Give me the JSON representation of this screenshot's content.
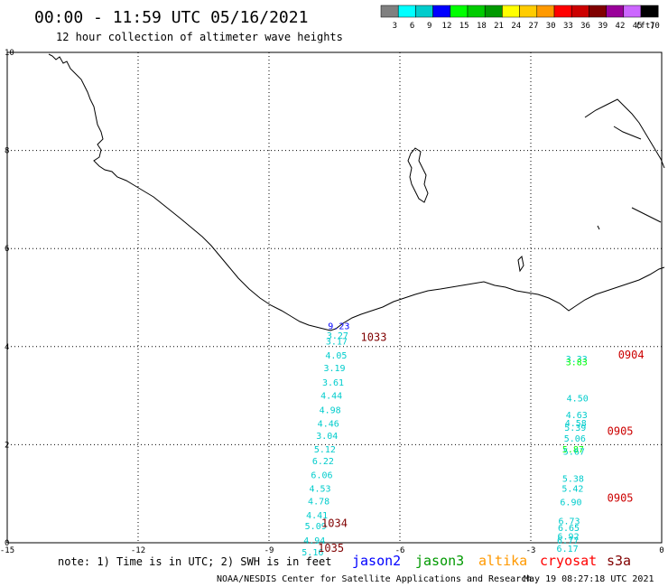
{
  "header": {
    "title": "00:00 - 11:59 UTC 05/16/2021",
    "subtitle": "12 hour collection of altimeter wave heights"
  },
  "legend": {
    "unit": "(ft)",
    "labels": [
      "3",
      "6",
      "9",
      "12",
      "15",
      "18",
      "21",
      "24",
      "27",
      "30",
      "33",
      "36",
      "39",
      "42",
      "45",
      "70"
    ],
    "colors": [
      "#808080",
      "#00ffff",
      "#00cccc",
      "#0000ff",
      "#00ff00",
      "#00cc00",
      "#009900",
      "#ffff00",
      "#ffcc00",
      "#ff9900",
      "#ff0000",
      "#cc0000",
      "#800000",
      "#990099",
      "#cc66ff",
      "#000000"
    ]
  },
  "axes": {
    "lon_ticks": [
      "-15",
      "-12",
      "-9",
      "-6",
      "-3",
      "0"
    ],
    "lat_ticks": [
      "0",
      "2",
      "4",
      "6",
      "8",
      "10"
    ],
    "lon_range": [
      -15,
      0
    ],
    "lat_range": [
      0,
      10
    ]
  },
  "tracks": [
    {
      "name": "track-west",
      "points": [
        {
          "lon": -7.4,
          "lat": 4.36,
          "v": "9.23",
          "color": "#0000ff"
        },
        {
          "lon": -7.43,
          "lat": 4.16,
          "v": "3.27",
          "color": "#00cccc"
        },
        {
          "lon": -7.45,
          "lat": 4.04,
          "v": "3.17",
          "color": "#00cccc"
        },
        {
          "lon": -7.46,
          "lat": 3.76,
          "v": "4.05",
          "color": "#00cccc"
        },
        {
          "lon": -7.5,
          "lat": 3.5,
          "v": "3.19",
          "color": "#00cccc"
        },
        {
          "lon": -7.53,
          "lat": 3.2,
          "v": "3.61",
          "color": "#00cccc"
        },
        {
          "lon": -7.57,
          "lat": 2.94,
          "v": "4.44",
          "color": "#00cccc"
        },
        {
          "lon": -7.6,
          "lat": 2.64,
          "v": "4.98",
          "color": "#00cccc"
        },
        {
          "lon": -7.64,
          "lat": 2.37,
          "v": "4.46",
          "color": "#00cccc"
        },
        {
          "lon": -7.67,
          "lat": 2.12,
          "v": "3.04",
          "color": "#00cccc"
        },
        {
          "lon": -7.72,
          "lat": 1.84,
          "v": "5.12",
          "color": "#00cccc"
        },
        {
          "lon": -7.76,
          "lat": 1.6,
          "v": "6.22",
          "color": "#00cccc"
        },
        {
          "lon": -7.79,
          "lat": 1.32,
          "v": "6.06",
          "color": "#00cccc"
        },
        {
          "lon": -7.83,
          "lat": 1.04,
          "v": "4.53",
          "color": "#00cccc"
        },
        {
          "lon": -7.86,
          "lat": 0.78,
          "v": "4.78",
          "color": "#00cccc"
        },
        {
          "lon": -7.9,
          "lat": 0.5,
          "v": "4.41",
          "color": "#00cccc"
        },
        {
          "lon": -7.93,
          "lat": 0.28,
          "v": "5.09",
          "color": "#00cccc"
        },
        {
          "lon": -7.96,
          "lat": -0.02,
          "v": "4.94",
          "color": "#00cccc"
        },
        {
          "lon": -8.0,
          "lat": -0.26,
          "v": "5.16",
          "color": "#00cccc"
        }
      ]
    },
    {
      "name": "track-east",
      "points": [
        {
          "lon": -1.95,
          "lat": 3.68,
          "v": "3.33",
          "color": "#00cccc"
        },
        {
          "lon": -1.95,
          "lat": 3.62,
          "v": "3.83",
          "color": "#00ff00"
        },
        {
          "lon": -1.93,
          "lat": 2.88,
          "v": "4.50",
          "color": "#00cccc"
        },
        {
          "lon": -1.95,
          "lat": 2.54,
          "v": "4.63",
          "color": "#00cccc"
        },
        {
          "lon": -1.97,
          "lat": 2.38,
          "v": "4.58",
          "color": "#00cccc"
        },
        {
          "lon": -1.98,
          "lat": 2.28,
          "v": "5.39",
          "color": "#00cccc"
        },
        {
          "lon": -1.99,
          "lat": 2.06,
          "v": "5.06",
          "color": "#00cccc"
        },
        {
          "lon": -2.03,
          "lat": 1.84,
          "v": "5.87",
          "color": "#00ff00"
        },
        {
          "lon": -2.01,
          "lat": 1.8,
          "v": "5.67",
          "color": "#00cccc"
        },
        {
          "lon": -2.03,
          "lat": 1.24,
          "v": "5.38",
          "color": "#00cccc"
        },
        {
          "lon": -2.04,
          "lat": 1.04,
          "v": "5.42",
          "color": "#00cccc"
        },
        {
          "lon": -2.08,
          "lat": 0.76,
          "v": "6.90",
          "color": "#00cccc"
        },
        {
          "lon": -2.12,
          "lat": 0.38,
          "v": "6.73",
          "color": "#00cccc"
        },
        {
          "lon": -2.13,
          "lat": 0.24,
          "v": "6.65",
          "color": "#00cccc"
        },
        {
          "lon": -2.14,
          "lat": 0.06,
          "v": "6.92",
          "color": "#00cccc"
        },
        {
          "lon": -2.15,
          "lat": -0.02,
          "v": "6.77",
          "color": "#00cccc"
        },
        {
          "lon": -2.16,
          "lat": -0.18,
          "v": "6.17",
          "color": "#00cccc"
        }
      ]
    }
  ],
  "times": [
    {
      "lon": -6.6,
      "lat": 4.12,
      "text": "1033",
      "color": "#800000"
    },
    {
      "lon": -7.5,
      "lat": 0.32,
      "text": "1034",
      "color": "#800000"
    },
    {
      "lon": -7.58,
      "lat": -0.18,
      "text": "1035",
      "color": "#800000"
    },
    {
      "lon": -0.7,
      "lat": 3.76,
      "text": "0904",
      "color": "#cc0000"
    },
    {
      "lon": -0.95,
      "lat": 2.2,
      "text": "0905",
      "color": "#cc0000"
    },
    {
      "lon": -0.95,
      "lat": 0.84,
      "text": "0905",
      "color": "#cc0000"
    }
  ],
  "footer": {
    "note": "note: 1) Time is in UTC; 2) SWH is in feet",
    "missions": [
      {
        "name": "jason2",
        "color": "#0000ff"
      },
      {
        "name": "jason3",
        "color": "#009900"
      },
      {
        "name": "altika",
        "color": "#ff9900"
      },
      {
        "name": "cryosat",
        "color": "#ff0000"
      },
      {
        "name": "s3a",
        "color": "#800000"
      }
    ],
    "credit": "NOAA/NESDIS Center for Satellite Applications and Research",
    "timestamp": "May 19 08:27:18 UTC 2021"
  }
}
